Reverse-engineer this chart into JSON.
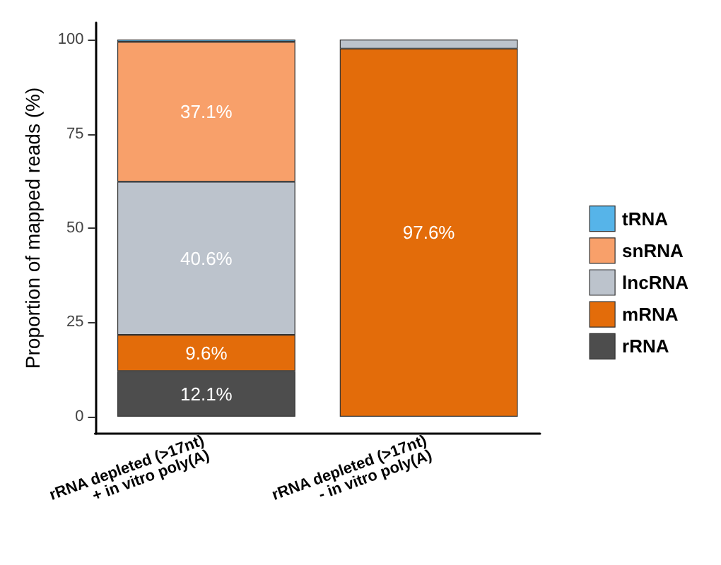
{
  "chart_data": {
    "type": "bar",
    "stacked": true,
    "ylabel": "Proportion of mapped reads (%)",
    "categories": [
      "rRNA depleted (>17nt)\n+ in vitro poly(A)",
      "rRNA depleted (>17nt)\n- in vitro poly(A)"
    ],
    "series": [
      {
        "name": "rRNA",
        "color": "#4d4d4d",
        "values": [
          12.1,
          null
        ],
        "value_labels": [
          "12.1%",
          null
        ]
      },
      {
        "name": "mRNA",
        "color": "#e36c0a",
        "values": [
          9.6,
          97.6
        ],
        "value_labels": [
          "9.6%",
          "97.6%"
        ]
      },
      {
        "name": "lncRNA",
        "color": "#bcc3cc",
        "values": [
          40.6,
          2.4
        ],
        "value_labels": [
          "40.6%",
          null
        ]
      },
      {
        "name": "snRNA",
        "color": "#f8a06a",
        "values": [
          37.1,
          null
        ],
        "value_labels": [
          "37.1%",
          null
        ]
      },
      {
        "name": "tRNA",
        "color": "#56b4e9",
        "values": [
          0.6,
          null
        ],
        "value_labels": [
          null,
          null
        ]
      }
    ],
    "ylim": [
      -4.5,
      104.5
    ],
    "yticks": [
      0,
      25,
      50,
      75,
      100
    ],
    "grid": false,
    "legend": "right"
  }
}
